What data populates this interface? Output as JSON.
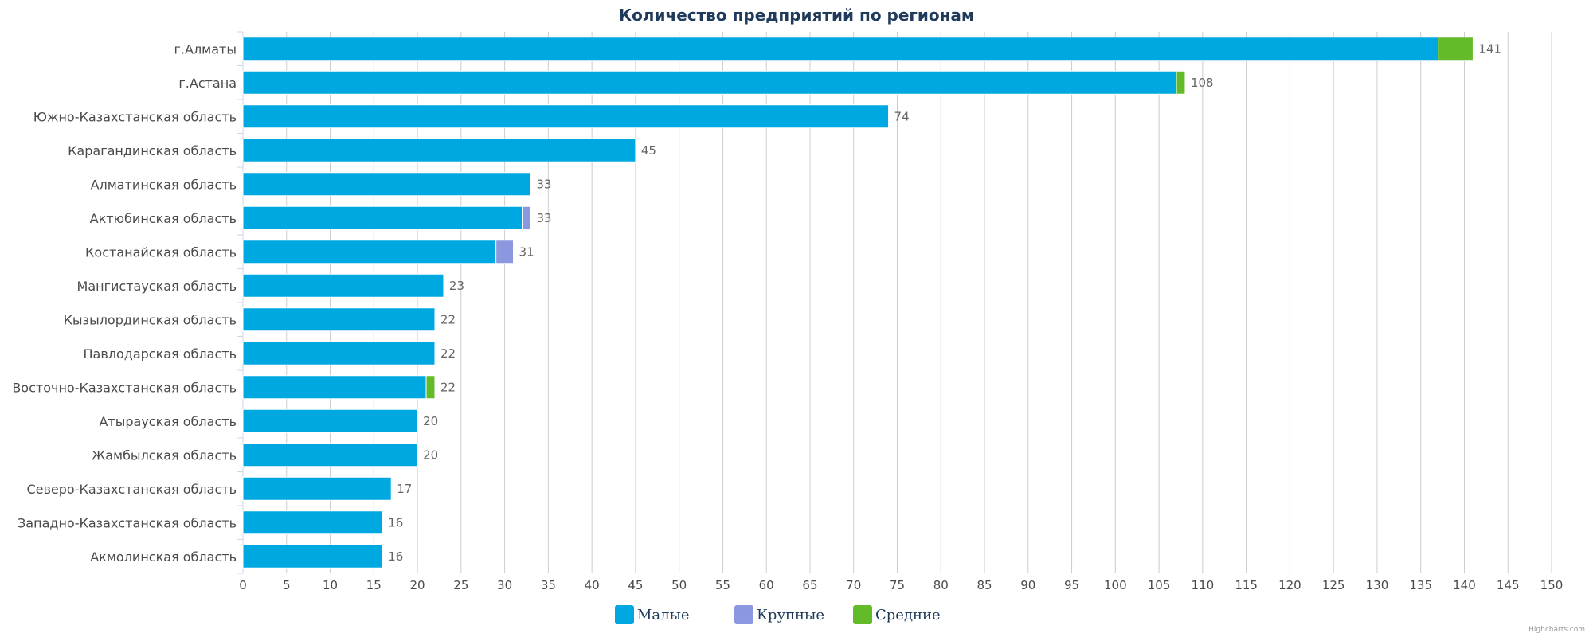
{
  "chart_data": {
    "type": "bar",
    "orientation": "horizontal",
    "stacked": true,
    "title": "Количество предприятий по регионам",
    "categories": [
      "г.Алматы",
      "г.Астана",
      "Южно-Казахстанская область",
      "Карагандинская область",
      "Алматинская область",
      "Актюбинская область",
      "Костанайская область",
      "Мангистауская область",
      "Кызылординская область",
      "Павлодарская область",
      "Восточно-Казахстанская область",
      "Атырауская область",
      "Жамбылская область",
      "Северо-Казахстанская область",
      "Западно-Казахстанская область",
      "Акмолинская область"
    ],
    "series": [
      {
        "name": "Малые",
        "color": "#00a8e1",
        "values": [
          137,
          107,
          74,
          45,
          33,
          32,
          29,
          23,
          22,
          22,
          21,
          20,
          20,
          17,
          16,
          16
        ]
      },
      {
        "name": "Крупные",
        "color": "#8b98df",
        "values": [
          0,
          0,
          0,
          0,
          0,
          1,
          2,
          0,
          0,
          0,
          0,
          0,
          0,
          0,
          0,
          0
        ]
      },
      {
        "name": "Средние",
        "color": "#64bb2a",
        "values": [
          4,
          1,
          0,
          0,
          0,
          0,
          0,
          0,
          0,
          0,
          1,
          0,
          0,
          0,
          0,
          0
        ]
      }
    ],
    "totals": [
      141,
      108,
      74,
      45,
      33,
      33,
      31,
      23,
      22,
      22,
      22,
      20,
      20,
      17,
      16,
      16
    ],
    "xlim": [
      0,
      150
    ],
    "x_ticks": [
      0,
      5,
      10,
      15,
      20,
      25,
      30,
      35,
      40,
      45,
      50,
      55,
      60,
      65,
      70,
      75,
      80,
      85,
      90,
      95,
      100,
      105,
      110,
      115,
      120,
      125,
      130,
      135,
      140,
      145,
      150
    ],
    "grid": true,
    "legend_position": "bottom-center"
  },
  "credit": "Highcharts.com"
}
